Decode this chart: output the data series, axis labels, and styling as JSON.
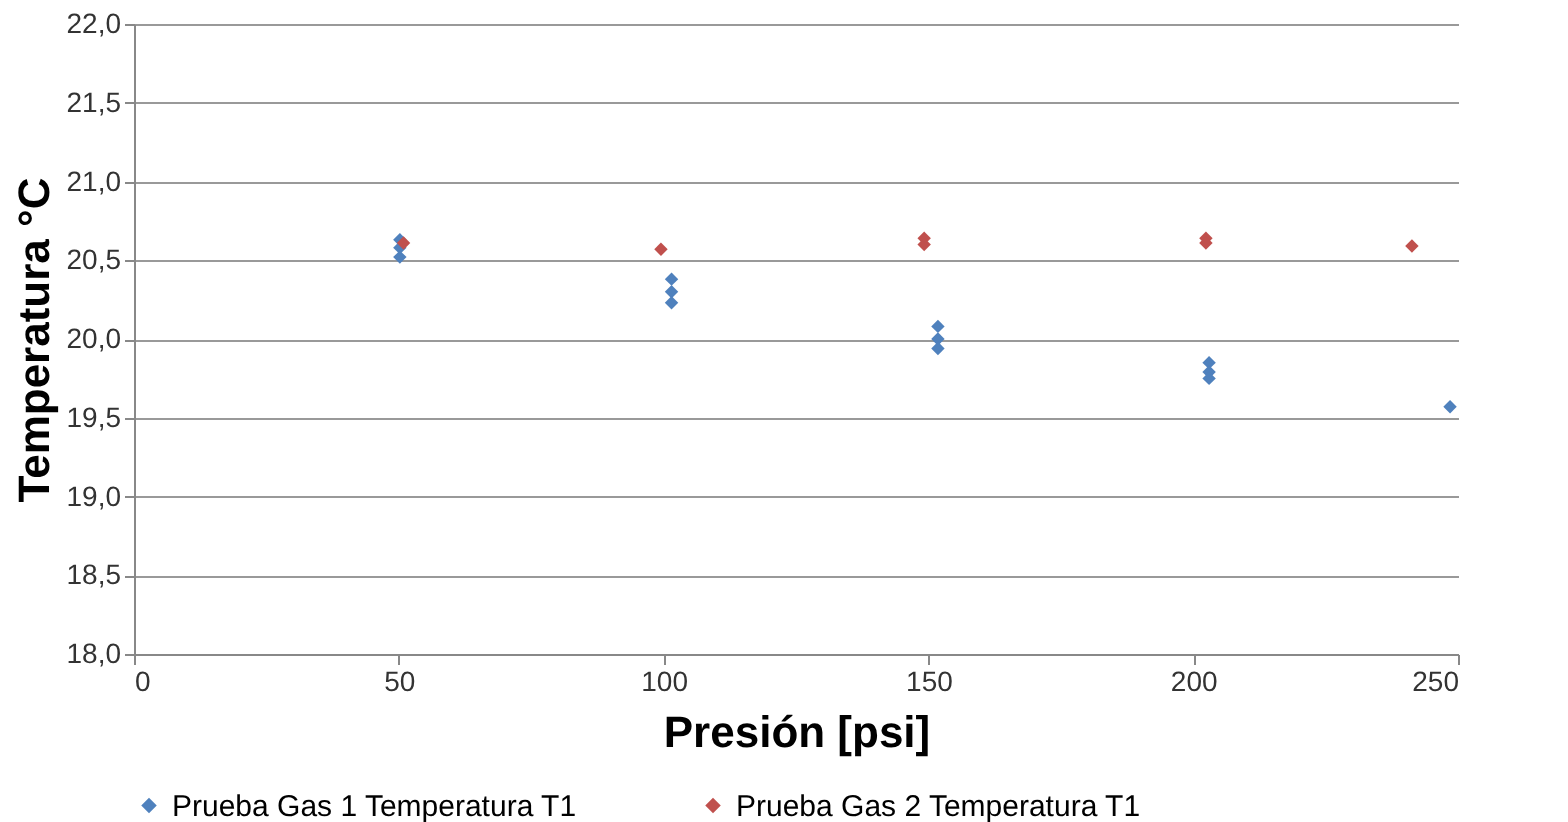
{
  "chart_data": {
    "type": "scatter",
    "xlabel": "Presión [psi]",
    "ylabel": "Temperatura °C",
    "xlim": [
      0,
      250
    ],
    "xticks": [
      0,
      50,
      100,
      150,
      200,
      250
    ],
    "ylim": [
      18,
      22
    ],
    "yticks": [
      {
        "value": 18,
        "label": "18,0"
      },
      {
        "value": 18.5,
        "label": "18,5"
      },
      {
        "value": 19,
        "label": "19,0"
      },
      {
        "value": 19.5,
        "label": "19,5"
      },
      {
        "value": 20,
        "label": "20,0"
      },
      {
        "value": 20.5,
        "label": "20,5"
      },
      {
        "value": 21,
        "label": "21,0"
      },
      {
        "value": 21.5,
        "label": "21,5"
      },
      {
        "value": 22,
        "label": "22,0"
      }
    ],
    "grid": "y",
    "legend": "bottom",
    "marker": "diamond",
    "series": [
      {
        "name": "Prueba Gas 1 Temperatura T1",
        "color": "#4f81bd",
        "x": [
          50.2,
          50.2,
          50.2,
          101.5,
          101.5,
          101.5,
          151.8,
          151.8,
          151.8,
          203,
          203,
          203,
          248.5
        ],
        "values": [
          20.63,
          20.52,
          20.58,
          20.38,
          20.3,
          20.23,
          20.08,
          20.0,
          19.94,
          19.85,
          19.79,
          19.75,
          19.57
        ]
      },
      {
        "name": "Prueba Gas 2 Temperatura T1",
        "color": "#c0504d",
        "x": [
          50.9,
          99.5,
          149.2,
          149.2,
          202.4,
          202.4,
          241.3
        ],
        "values": [
          20.61,
          20.57,
          20.64,
          20.6,
          20.64,
          20.61,
          20.59
        ]
      }
    ]
  }
}
